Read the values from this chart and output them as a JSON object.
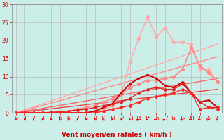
{
  "title": "",
  "xlabel": "Vent moyen/en rafales ( km/h )",
  "ylabel": "",
  "bg_color": "#cceee8",
  "grid_color": "#b0b0b0",
  "x_ticks": [
    0,
    1,
    2,
    3,
    4,
    5,
    6,
    7,
    8,
    9,
    10,
    11,
    12,
    13,
    14,
    15,
    16,
    17,
    18,
    19,
    20,
    21,
    22,
    23
  ],
  "y_ticks": [
    0,
    5,
    10,
    15,
    20,
    25,
    30
  ],
  "xlim": [
    -0.5,
    23.5
  ],
  "ylim": [
    0,
    30
  ],
  "lines": [
    {
      "x": [
        0,
        23
      ],
      "y": [
        0,
        19.0
      ],
      "color": "#ffaaaa",
      "linewidth": 1.0,
      "marker": "D",
      "markersize": 0,
      "linestyle": "-"
    },
    {
      "x": [
        0,
        23
      ],
      "y": [
        0,
        15.5
      ],
      "color": "#ff8888",
      "linewidth": 1.0,
      "marker": "D",
      "markersize": 0,
      "linestyle": "-"
    },
    {
      "x": [
        0,
        23
      ],
      "y": [
        0,
        9.5
      ],
      "color": "#ff6666",
      "linewidth": 1.0,
      "marker": "D",
      "markersize": 0,
      "linestyle": "-"
    },
    {
      "x": [
        0,
        23
      ],
      "y": [
        0,
        6.5
      ],
      "color": "#ee4444",
      "linewidth": 1.0,
      "marker": "D",
      "markersize": 0,
      "linestyle": "-"
    },
    {
      "x": [
        0,
        1,
        2,
        3,
        4,
        5,
        6,
        7,
        8,
        9,
        10,
        11,
        12,
        13,
        14,
        15,
        16,
        17,
        18,
        19,
        20,
        21,
        22,
        23
      ],
      "y": [
        0,
        0,
        0,
        0,
        0,
        0,
        0,
        0,
        0,
        0,
        1.0,
        2.0,
        5.0,
        14.0,
        20.5,
        26.5,
        21.0,
        23.5,
        19.5,
        19.5,
        19.0,
        12.0,
        12.0,
        8.5
      ],
      "color": "#ffaaaa",
      "linewidth": 1.2,
      "marker": "D",
      "markersize": 2.5,
      "linestyle": "-"
    },
    {
      "x": [
        0,
        1,
        2,
        3,
        4,
        5,
        6,
        7,
        8,
        9,
        10,
        11,
        12,
        13,
        14,
        15,
        16,
        17,
        18,
        19,
        20,
        21,
        22,
        23
      ],
      "y": [
        0,
        0,
        0,
        0,
        0,
        0,
        0.5,
        1.0,
        1.5,
        2.0,
        3.0,
        4.0,
        5.0,
        7.0,
        8.0,
        9.0,
        9.0,
        9.5,
        10.0,
        12.0,
        18.0,
        13.0,
        11.0,
        8.5
      ],
      "color": "#ff8888",
      "linewidth": 1.2,
      "marker": "D",
      "markersize": 2.5,
      "linestyle": "-"
    },
    {
      "x": [
        0,
        1,
        2,
        3,
        4,
        5,
        6,
        7,
        8,
        9,
        10,
        11,
        12,
        13,
        14,
        15,
        16,
        17,
        18,
        19,
        20,
        21,
        22,
        23
      ],
      "y": [
        0,
        0,
        0,
        0,
        0,
        0,
        0,
        0,
        0,
        0.5,
        1.5,
        2.5,
        5.5,
        8.0,
        9.5,
        10.5,
        9.5,
        7.5,
        7.0,
        8.5,
        5.5,
        3.0,
        3.5,
        1.5
      ],
      "color": "#cc0000",
      "linewidth": 1.4,
      "marker": "+",
      "markersize": 3,
      "linestyle": "-"
    },
    {
      "x": [
        0,
        1,
        2,
        3,
        4,
        5,
        6,
        7,
        8,
        9,
        10,
        11,
        12,
        13,
        14,
        15,
        16,
        17,
        18,
        19,
        20,
        21,
        22,
        23
      ],
      "y": [
        0,
        0,
        0,
        0,
        0.2,
        0.3,
        0.5,
        0.8,
        1.0,
        1.5,
        2.0,
        2.5,
        3.0,
        4.0,
        5.5,
        6.5,
        7.0,
        6.5,
        6.5,
        8.0,
        5.5,
        3.0,
        1.5,
        1.5
      ],
      "color": "#dd2222",
      "linewidth": 1.0,
      "marker": "D",
      "markersize": 2,
      "linestyle": "-"
    },
    {
      "x": [
        0,
        1,
        2,
        3,
        4,
        5,
        6,
        7,
        8,
        9,
        10,
        11,
        12,
        13,
        14,
        15,
        16,
        17,
        18,
        19,
        20,
        21,
        22,
        23
      ],
      "y": [
        0,
        0,
        0,
        0,
        0,
        0,
        0,
        0,
        0,
        0,
        0.5,
        1.0,
        1.5,
        2.0,
        3.0,
        4.0,
        4.5,
        5.0,
        5.5,
        6.5,
        5.5,
        1.0,
        1.5,
        1.0
      ],
      "color": "#ff2222",
      "linewidth": 1.0,
      "marker": "D",
      "markersize": 2,
      "linestyle": "-"
    }
  ],
  "arrow_angles_deg": [
    0,
    0,
    0,
    0,
    0,
    0,
    0,
    0,
    0,
    0,
    0,
    0,
    0,
    0,
    45,
    60,
    45,
    45,
    30,
    45,
    60,
    60,
    60,
    60
  ],
  "arrow_color": "#ff0000",
  "spine_color": "#888888",
  "tick_color": "#cc0000",
  "tick_fontsize": 5.5,
  "xlabel_fontsize": 6.5,
  "xlabel_color": "#cc0000"
}
